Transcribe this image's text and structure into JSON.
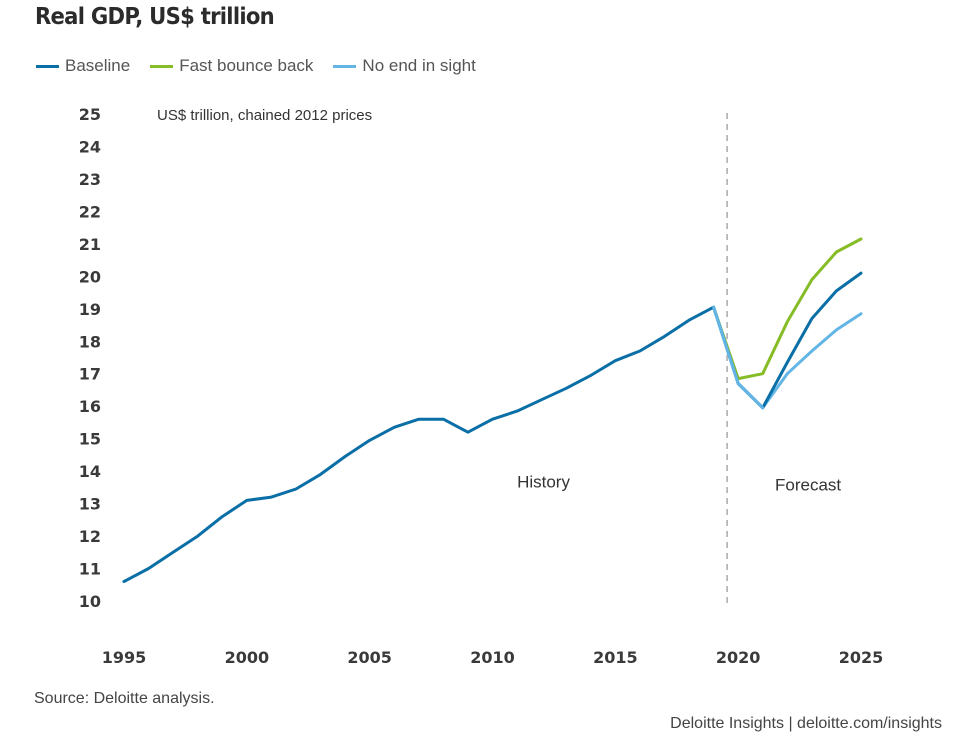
{
  "header": {
    "title": "Real GDP, US$ trillion"
  },
  "footer": {
    "source": "Source: Deloitte analysis.",
    "credit": "Deloitte Insights | deloitte.com/insights"
  },
  "chart_data": {
    "type": "line",
    "title": "Real GDP, US$ trillion",
    "unit_note": "US$ trillion, chained 2012 prices",
    "xlabel": "",
    "ylabel": "",
    "xlim": [
      1995,
      2025
    ],
    "ylim": [
      10,
      25
    ],
    "x_ticks": [
      1995,
      2000,
      2005,
      2010,
      2015,
      2020,
      2025
    ],
    "y_ticks": [
      10,
      11,
      12,
      13,
      14,
      15,
      16,
      17,
      18,
      19,
      20,
      21,
      22,
      23,
      24,
      25
    ],
    "grid": false,
    "legend_position": "top-left",
    "divider": {
      "x": 2019.55,
      "style": "dashed",
      "color": "#aaaaaa"
    },
    "annotations": [
      {
        "text": "History",
        "x": 2011,
        "y": 13.5
      },
      {
        "text": "Forecast",
        "x": 2021.5,
        "y": 13.4
      }
    ],
    "series": [
      {
        "name": "Baseline",
        "color": "#0a6fa6",
        "x": [
          1995,
          1996,
          1997,
          1998,
          1999,
          2000,
          2001,
          2002,
          2003,
          2004,
          2005,
          2006,
          2007,
          2008,
          2009,
          2010,
          2011,
          2012,
          2013,
          2014,
          2015,
          2016,
          2017,
          2018,
          2019,
          2020,
          2021,
          2022,
          2023,
          2024,
          2025
        ],
        "values": [
          10.6,
          11.0,
          11.5,
          12.0,
          12.6,
          13.1,
          13.2,
          13.45,
          13.9,
          14.45,
          14.95,
          15.35,
          15.6,
          15.6,
          15.2,
          15.6,
          15.85,
          16.2,
          16.55,
          16.95,
          17.4,
          17.7,
          18.15,
          18.65,
          19.05,
          16.7,
          15.95,
          17.35,
          18.7,
          19.55,
          20.1
        ]
      },
      {
        "name": "Fast bounce back",
        "color": "#86bc25",
        "x": [
          2019,
          2020,
          2021,
          2022,
          2023,
          2024,
          2025
        ],
        "values": [
          19.05,
          16.85,
          17.0,
          18.6,
          19.9,
          20.75,
          21.15
        ]
      },
      {
        "name": "No end in sight",
        "color": "#62b5e5",
        "x": [
          2019,
          2020,
          2021,
          2022,
          2023,
          2024,
          2025
        ],
        "values": [
          19.05,
          16.7,
          15.95,
          17.0,
          17.7,
          18.35,
          18.85
        ]
      }
    ]
  }
}
